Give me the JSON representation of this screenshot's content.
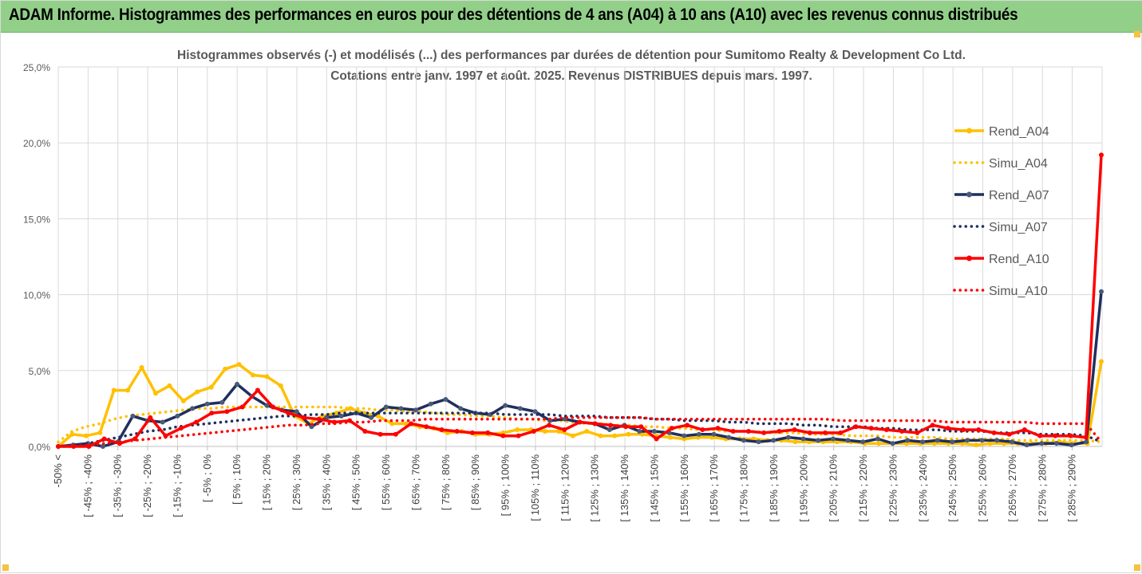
{
  "banner": {
    "title": "ADAM Informe. Histogrammes des performances en euros pour des détentions de 4 ans (A04) à 10 ans (A10) avec les revenus connus distribués"
  },
  "colors": {
    "banner_bg": "#92d08a",
    "A04": "#ffc000",
    "A07": "#1f2f5e",
    "A10": "#ff0000",
    "grid": "#d9d9d9"
  },
  "chart_data": {
    "type": "line",
    "title": "Histogrammes observés (-)  et modélisés (...) des performances par durées de détention pour Sumitomo Realty & Development Co Ltd.",
    "subtitle": "Cotations entre janv. 1997 et août. 2025. Revenus DISTRIBUES depuis mars. 1997.",
    "ylim": [
      0,
      25
    ],
    "yticks": [
      0,
      5,
      10,
      15,
      20,
      25
    ],
    "ytick_labels": [
      "0,0%",
      "5,0%",
      "10,0%",
      "15,0%",
      "20,0%",
      "25,0%"
    ],
    "grid": true,
    "legend_position": "right",
    "x_labels": [
      "-50% <",
      "[ -45% ; -40%",
      "[ -35% ; -30%",
      "[ -25% ; -20%",
      "[ -15% ; -10%",
      "[ -5% ; 0%",
      "[ 5% ; 10%",
      "[ 15% ; 20%",
      "[ 25% ; 30%",
      "[ 35% ; 40%",
      "[ 45% ; 50%",
      "[ 55% ; 60%",
      "[ 65% ; 70%",
      "[ 75% ; 80%",
      "[ 85% ; 90%",
      "[ 95% ; 100%",
      "[ 105% ; 110%",
      "[ 115% ; 120%",
      "[ 125% ; 130%",
      "[ 135% ; 140%",
      "[ 145% ; 150%",
      "[ 155% ; 160%",
      "[ 165% ; 170%",
      "[ 175% ; 180%",
      "[ 185% ; 190%",
      "[ 195% ; 200%",
      "[ 205% ; 210%",
      "[ 215% ; 220%",
      "[ 225% ; 230%",
      "[ 235% ; 240%",
      "[ 245% ; 250%",
      "[ 255% ; 260%",
      "[ 265% ; 270%",
      "[ 275% ; 280%",
      "[ 285% ; 290%"
    ],
    "series": [
      {
        "name": "Rend_A04",
        "style": "solid",
        "color": "#ffc000",
        "values": [
          0,
          0.8,
          0.7,
          0.9,
          3.7,
          3.7,
          5.2,
          3.5,
          4.0,
          3.0,
          3.6,
          3.9,
          5.1,
          5.4,
          4.7,
          4.6,
          4.0,
          2.0,
          1.5,
          2.0,
          2.2,
          2.5,
          2.2,
          2.0,
          1.5,
          1.5,
          1.3,
          1.2,
          0.9,
          1.0,
          0.8,
          0.8,
          0.9,
          1.1,
          1.1,
          1.0,
          1.0,
          0.7,
          1.0,
          0.7,
          0.7,
          0.8,
          0.8,
          0.7,
          0.6,
          0.5,
          0.6,
          0.6,
          0.5,
          0.5,
          0.5,
          0.4,
          0.4,
          0.3,
          0.3,
          0.3,
          0.3,
          0.3,
          0.2,
          0.2,
          0.2,
          0.2,
          0.2,
          0.2,
          0.2,
          0.2,
          0.1,
          0.2,
          0.2,
          0.2,
          0.2,
          0.2,
          0.3,
          0.2,
          0.2,
          5.6
        ]
      },
      {
        "name": "Simu_A04",
        "style": "dotted",
        "color": "#ffc000",
        "values": [
          0.3,
          1.0,
          1.3,
          1.5,
          1.8,
          2.0,
          2.1,
          2.2,
          2.3,
          2.4,
          2.5,
          2.5,
          2.6,
          2.6,
          2.6,
          2.6,
          2.6,
          2.6,
          2.6,
          2.6,
          2.6,
          2.5,
          2.5,
          2.4,
          2.4,
          2.3,
          2.3,
          2.2,
          2.1,
          2.1,
          2.0,
          2.0,
          1.9,
          1.8,
          1.8,
          1.7,
          1.7,
          1.6,
          1.5,
          1.5,
          1.4,
          1.4,
          1.3,
          1.3,
          1.2,
          1.2,
          1.1,
          1.1,
          1.0,
          1.0,
          1.0,
          0.9,
          0.9,
          0.9,
          0.8,
          0.8,
          0.8,
          0.7,
          0.7,
          0.7,
          0.6,
          0.6,
          0.6,
          0.6,
          0.5,
          0.5,
          0.5,
          0.5,
          0.5,
          0.4,
          0.4,
          0.4,
          0.4,
          0.4,
          0.4,
          0.3
        ]
      },
      {
        "name": "Rend_A07",
        "style": "solid",
        "color": "#1f2f5e",
        "values": [
          0,
          0.1,
          0.2,
          0,
          0.3,
          2.0,
          1.7,
          1.6,
          2.0,
          2.5,
          2.8,
          2.9,
          4.1,
          3.3,
          2.7,
          2.4,
          2.3,
          1.3,
          1.9,
          2.0,
          2.2,
          1.9,
          2.6,
          2.5,
          2.4,
          2.8,
          3.1,
          2.5,
          2.2,
          2.1,
          2.7,
          2.5,
          2.3,
          1.7,
          1.8,
          1.6,
          1.5,
          1.1,
          1.4,
          1.0,
          1.0,
          0.9,
          0.7,
          0.8,
          0.8,
          0.6,
          0.4,
          0.3,
          0.4,
          0.6,
          0.5,
          0.4,
          0.5,
          0.4,
          0.3,
          0.5,
          0.2,
          0.4,
          0.3,
          0.4,
          0.3,
          0.4,
          0.4,
          0.4,
          0.3,
          0.1,
          0.2,
          0.2,
          0.1,
          0.3,
          10.2
        ]
      },
      {
        "name": "Simu_A07",
        "style": "dotted",
        "color": "#1f2f5e",
        "values": [
          0,
          0.1,
          0.2,
          0.4,
          0.6,
          0.8,
          1.0,
          1.1,
          1.3,
          1.4,
          1.5,
          1.6,
          1.7,
          1.8,
          1.9,
          2.0,
          2.0,
          2.1,
          2.1,
          2.2,
          2.2,
          2.2,
          2.2,
          2.2,
          2.2,
          2.2,
          2.2,
          2.2,
          2.2,
          2.2,
          2.1,
          2.1,
          2.1,
          2.1,
          2.0,
          2.0,
          2.0,
          1.9,
          1.9,
          1.9,
          1.8,
          1.8,
          1.7,
          1.7,
          1.7,
          1.6,
          1.6,
          1.5,
          1.5,
          1.5,
          1.4,
          1.4,
          1.3,
          1.3,
          1.3,
          1.2,
          1.2,
          1.1,
          1.1,
          1.1,
          1.0,
          1.0,
          1.0,
          0.9,
          0.9,
          0.9,
          0.8,
          0.8,
          0.8,
          0.7,
          0.3
        ]
      },
      {
        "name": "Rend_A10",
        "style": "solid",
        "color": "#ff0000",
        "values": [
          0,
          0,
          0,
          0.5,
          0.2,
          0.5,
          1.9,
          0.7,
          1.2,
          1.6,
          2.2,
          2.3,
          2.6,
          3.7,
          2.6,
          2.2,
          1.9,
          1.8,
          1.6,
          1.7,
          1.0,
          0.8,
          0.8,
          1.5,
          1.3,
          1.1,
          1.0,
          0.9,
          0.9,
          0.7,
          0.7,
          1.0,
          1.4,
          1.1,
          1.6,
          1.5,
          1.4,
          1.3,
          1.3,
          0.5,
          1.2,
          1.4,
          1.1,
          1.2,
          1.0,
          1.0,
          0.9,
          1.0,
          1.1,
          0.9,
          0.9,
          0.9,
          1.3,
          1.2,
          1.1,
          1.0,
          0.9,
          1.4,
          1.2,
          1.1,
          1.1,
          0.9,
          0.8,
          1.1,
          0.7,
          0.7,
          0.7,
          0.6,
          19.2
        ]
      },
      {
        "name": "Simu_A10",
        "style": "dotted",
        "color": "#ff0000",
        "values": [
          0,
          0,
          0.1,
          0.2,
          0.3,
          0.4,
          0.5,
          0.6,
          0.7,
          0.8,
          0.9,
          1.0,
          1.1,
          1.2,
          1.3,
          1.4,
          1.4,
          1.5,
          1.5,
          1.6,
          1.6,
          1.7,
          1.7,
          1.7,
          1.8,
          1.8,
          1.8,
          1.8,
          1.8,
          1.8,
          1.8,
          1.8,
          1.8,
          1.9,
          1.9,
          1.9,
          1.9,
          1.9,
          1.9,
          1.8,
          1.8,
          1.8,
          1.8,
          1.8,
          1.8,
          1.8,
          1.8,
          1.8,
          1.8,
          1.8,
          1.8,
          1.7,
          1.7,
          1.7,
          1.7,
          1.7,
          1.7,
          1.7,
          1.6,
          1.6,
          1.6,
          1.6,
          1.6,
          1.6,
          1.5,
          1.5,
          1.5,
          1.5,
          0.3
        ]
      }
    ]
  }
}
